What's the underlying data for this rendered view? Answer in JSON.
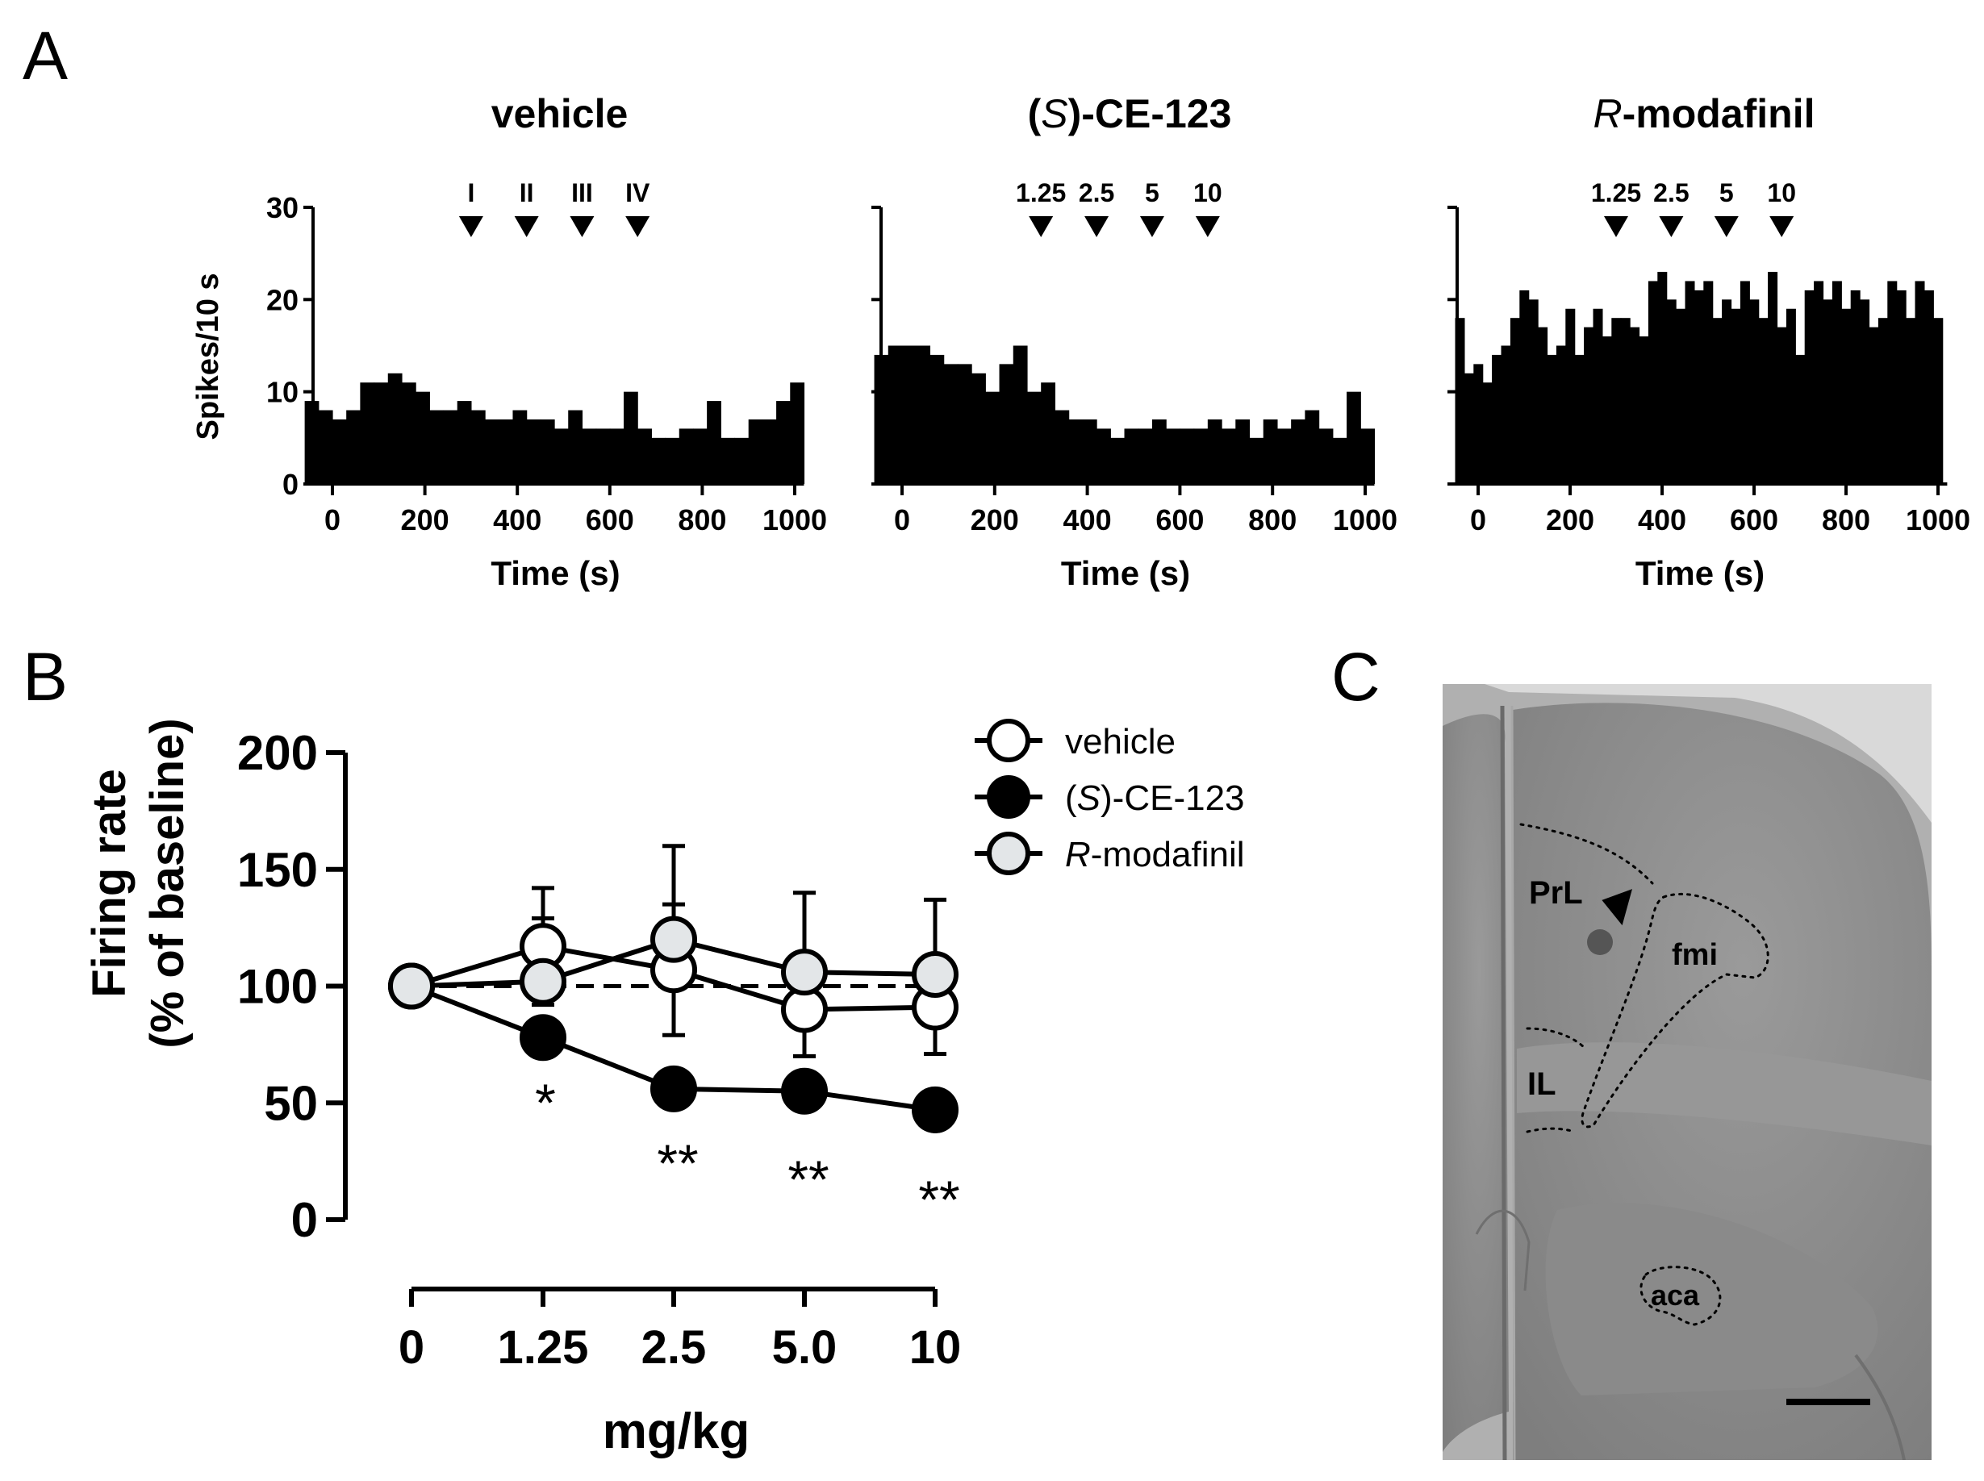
{
  "panel_labels": [
    "A",
    "B",
    "C"
  ],
  "panel_a": {
    "y_axis_label": "Spikes/10 s",
    "y_ticks": [
      0,
      10,
      20,
      30
    ],
    "x_ticks": [
      0,
      200,
      400,
      600,
      800,
      1000
    ],
    "x_axis_label": "Time (s)"
  },
  "panel_b": {
    "y_axis_label_line1": "Firing rate",
    "y_axis_label_line2": "(% of baseline)",
    "x_axis_label": "mg/kg",
    "significance_marks": [
      "*",
      "**",
      "**",
      "**"
    ]
  },
  "panel_c": {
    "labels": [
      "PrL",
      "fmi",
      "IL",
      "aca"
    ]
  },
  "colors": {
    "ink": "#000000",
    "open_marker": "#ffffff",
    "filled_marker": "#000000",
    "grey_marker": "#e3e6e8",
    "tissue": "#8d8d8d"
  },
  "chart_data": [
    {
      "type": "bar",
      "title_parts": [
        {
          "text": "vehicle",
          "italic": false
        }
      ],
      "x_range": [
        -50,
        1020
      ],
      "ylim": [
        0,
        30
      ],
      "bin_width": 30,
      "arrow_times": [
        300,
        420,
        540,
        660
      ],
      "arrow_labels": [
        "I",
        "II",
        "III",
        "IV"
      ],
      "times": [
        -45,
        -15,
        15,
        45,
        75,
        105,
        135,
        165,
        195,
        225,
        255,
        285,
        315,
        345,
        375,
        405,
        435,
        465,
        495,
        525,
        555,
        585,
        615,
        645,
        675,
        705,
        735,
        765,
        795,
        825,
        855,
        885,
        915,
        945,
        975,
        1005
      ],
      "values": [
        9,
        8,
        7,
        8,
        11,
        11,
        12,
        11,
        10,
        8,
        8,
        9,
        8,
        7,
        7,
        8,
        7,
        7,
        6,
        8,
        6,
        6,
        6,
        10,
        6,
        5,
        5,
        6,
        6,
        9,
        5,
        5,
        7,
        7,
        9,
        11
      ]
    },
    {
      "type": "bar",
      "title_parts": [
        {
          "text": "(",
          "italic": false
        },
        {
          "text": "S",
          "italic": true
        },
        {
          "text": ")-CE-123",
          "italic": false
        }
      ],
      "x_range": [
        -50,
        1020
      ],
      "ylim": [
        0,
        30
      ],
      "bin_width": 30,
      "arrow_times": [
        300,
        420,
        540,
        660
      ],
      "arrow_labels": [
        "1.25",
        "2.5",
        "5",
        "10"
      ],
      "times": [
        -45,
        -15,
        15,
        45,
        75,
        105,
        135,
        165,
        195,
        225,
        255,
        285,
        315,
        345,
        375,
        405,
        435,
        465,
        495,
        525,
        555,
        585,
        615,
        645,
        675,
        705,
        735,
        765,
        795,
        825,
        855,
        885,
        915,
        945,
        975,
        1005
      ],
      "values": [
        14,
        15,
        15,
        15,
        14,
        13,
        13,
        12,
        10,
        13,
        15,
        10,
        11,
        8,
        7,
        7,
        6,
        5,
        6,
        6,
        7,
        6,
        6,
        6,
        7,
        6,
        7,
        5,
        7,
        6,
        7,
        8,
        6,
        5,
        10,
        6
      ]
    },
    {
      "type": "bar",
      "title_parts": [
        {
          "text": "R",
          "italic": true
        },
        {
          "text": "-modafinil",
          "italic": false
        }
      ],
      "x_range": [
        -50,
        1020
      ],
      "ylim": [
        0,
        30
      ],
      "bin_width": 20,
      "arrow_times": [
        300,
        420,
        540,
        660
      ],
      "arrow_labels": [
        "1.25",
        "2.5",
        "5",
        "10"
      ],
      "times": [
        -40,
        -20,
        0,
        20,
        40,
        60,
        80,
        100,
        120,
        140,
        160,
        180,
        200,
        220,
        240,
        260,
        280,
        300,
        320,
        340,
        360,
        380,
        400,
        420,
        440,
        460,
        480,
        500,
        520,
        540,
        560,
        580,
        600,
        620,
        640,
        660,
        680,
        700,
        720,
        740,
        760,
        780,
        800,
        820,
        840,
        860,
        880,
        900,
        920,
        940,
        960,
        980,
        1000
      ],
      "values": [
        18,
        12,
        13,
        11,
        14,
        15,
        18,
        21,
        20,
        17,
        14,
        15,
        19,
        14,
        17,
        19,
        16,
        18,
        18,
        17,
        16,
        22,
        23,
        20,
        19,
        22,
        21,
        22,
        18,
        20,
        19,
        22,
        20,
        18,
        23,
        17,
        19,
        14,
        21,
        22,
        20,
        22,
        19,
        21,
        20,
        17,
        18,
        22,
        21,
        18,
        22,
        21,
        18
      ]
    },
    {
      "type": "line",
      "title": "",
      "xlabel": "mg/kg",
      "ylabel": "Firing rate (% of baseline)",
      "categories": [
        "0",
        "1.25",
        "2.5",
        "5.0",
        "10"
      ],
      "ylim": [
        0,
        200
      ],
      "y_ticks": [
        0,
        50,
        100,
        150,
        200
      ],
      "reference_line": 100,
      "legend_position": "top-right",
      "series": [
        {
          "name": "vehicle",
          "name_parts": [
            {
              "text": "vehicle",
              "italic": false
            }
          ],
          "marker": "open",
          "values": [
            100,
            117,
            107,
            90,
            91
          ],
          "error": [
            0,
            25,
            28,
            20,
            20
          ]
        },
        {
          "name": "(S)-CE-123",
          "name_parts": [
            {
              "text": "(",
              "italic": false
            },
            {
              "text": "S",
              "italic": true
            },
            {
              "text": ")-CE-123",
              "italic": false
            }
          ],
          "marker": "filled",
          "values": [
            100,
            78,
            56,
            55,
            47
          ],
          "error": [
            0,
            5,
            4,
            4,
            10
          ]
        },
        {
          "name": "R-modafinil",
          "name_parts": [
            {
              "text": "R",
              "italic": true
            },
            {
              "text": "-modafinil",
              "italic": false
            }
          ],
          "marker": "grey",
          "values": [
            100,
            102,
            120,
            106,
            105
          ],
          "error": [
            0,
            27,
            40,
            34,
            32
          ]
        }
      ]
    }
  ]
}
